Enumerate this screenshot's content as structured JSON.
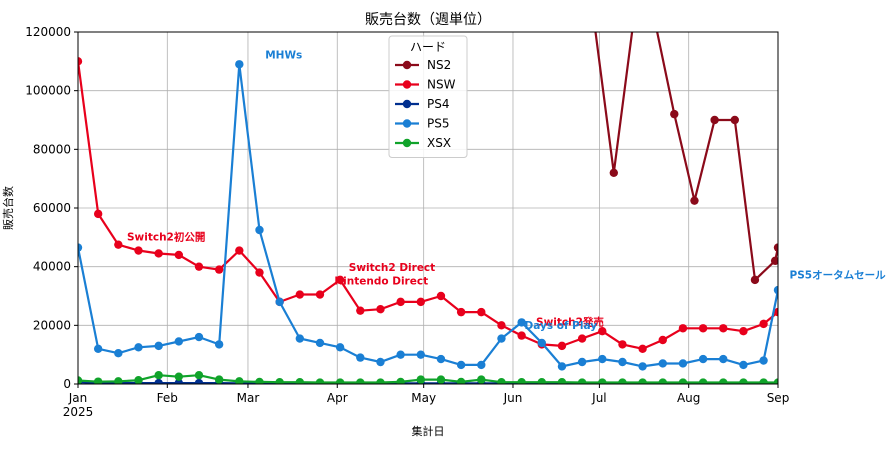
{
  "chart_data": {
    "type": "line",
    "title": "販売台数（週単位）",
    "xlabel": "集計日",
    "ylabel": "販売台数",
    "ylim": [
      0,
      120000
    ],
    "yticks": [
      0,
      20000,
      40000,
      60000,
      80000,
      100000,
      120000
    ],
    "ytick_labels": [
      "0",
      "20000",
      "40000",
      "60000",
      "80000",
      "100000",
      "120000"
    ],
    "xlim": [
      "2025-01-01",
      "2025-09-01"
    ],
    "xticks": [
      {
        "date": "2025-01-01",
        "label": "Jan",
        "sub": "2025"
      },
      {
        "date": "2025-02-01",
        "label": "Feb",
        "sub": ""
      },
      {
        "date": "2025-03-01",
        "label": "Mar",
        "sub": ""
      },
      {
        "date": "2025-04-01",
        "label": "Apr",
        "sub": ""
      },
      {
        "date": "2025-05-01",
        "label": "May",
        "sub": ""
      },
      {
        "date": "2025-06-01",
        "label": "Jun",
        "sub": ""
      },
      {
        "date": "2025-07-01",
        "label": "Jul",
        "sub": ""
      },
      {
        "date": "2025-08-01",
        "label": "Aug",
        "sub": ""
      },
      {
        "date": "2025-09-01",
        "label": "Sep",
        "sub": ""
      }
    ],
    "grid": true,
    "legend": {
      "title": "ハード",
      "placement": "top-center"
    },
    "series": [
      {
        "name": "NS2",
        "color": "#8b0a1a",
        "x": [
          "2025-06-29",
          "2025-07-06",
          "2025-07-13",
          "2025-07-20",
          "2025-07-27",
          "2025-08-03",
          "2025-08-10",
          "2025-08-17",
          "2025-08-24",
          "2025-08-31"
        ],
        "values": [
          125000,
          72000,
          125000,
          125000,
          92000,
          62500,
          90000,
          90000,
          35500,
          42000
        ],
        "last_value": 46500
      },
      {
        "name": "NSW",
        "color": "#e8001c",
        "x": [
          "2025-01-01",
          "2025-01-08",
          "2025-01-15",
          "2025-01-22",
          "2025-01-29",
          "2025-02-05",
          "2025-02-12",
          "2025-02-19",
          "2025-02-26",
          "2025-03-05",
          "2025-03-12",
          "2025-03-19",
          "2025-03-26",
          "2025-04-02",
          "2025-04-09",
          "2025-04-16",
          "2025-04-23",
          "2025-04-30",
          "2025-05-07",
          "2025-05-14",
          "2025-05-21",
          "2025-05-28",
          "2025-06-04",
          "2025-06-11",
          "2025-06-18",
          "2025-06-25",
          "2025-07-02",
          "2025-07-09",
          "2025-07-16",
          "2025-07-23",
          "2025-07-30",
          "2025-08-06",
          "2025-08-13",
          "2025-08-20",
          "2025-08-27",
          "2025-09-01"
        ],
        "values": [
          110000,
          58000,
          47500,
          45500,
          44500,
          44000,
          40000,
          39000,
          45500,
          38000,
          28000,
          30500,
          30500,
          35500,
          25000,
          25500,
          28000,
          28000,
          30000,
          24500,
          24500,
          20000,
          16500,
          13500,
          13000,
          15500,
          18000,
          13500,
          12000,
          15000,
          19000,
          19000,
          19000,
          18000,
          20500,
          24500
        ]
      },
      {
        "name": "PS4",
        "color": "#002f8f",
        "x": [
          "2025-01-01",
          "2025-01-08",
          "2025-01-15",
          "2025-01-22",
          "2025-01-29",
          "2025-02-05",
          "2025-02-12",
          "2025-02-19",
          "2025-02-26",
          "2025-03-05",
          "2025-03-12",
          "2025-03-19",
          "2025-03-26",
          "2025-04-02",
          "2025-04-09",
          "2025-04-16",
          "2025-04-23",
          "2025-04-30",
          "2025-05-07",
          "2025-05-14",
          "2025-05-21",
          "2025-05-28",
          "2025-06-04",
          "2025-06-11",
          "2025-06-18",
          "2025-06-25",
          "2025-07-02",
          "2025-07-09",
          "2025-07-16",
          "2025-07-23",
          "2025-07-30",
          "2025-08-06",
          "2025-08-13",
          "2025-08-20",
          "2025-08-27",
          "2025-09-01"
        ],
        "values": [
          600,
          400,
          400,
          300,
          300,
          300,
          300,
          300,
          200,
          200,
          200,
          200,
          200,
          200,
          200,
          200,
          200,
          200,
          200,
          200,
          200,
          200,
          200,
          200,
          200,
          200,
          200,
          200,
          200,
          200,
          200,
          200,
          200,
          200,
          200,
          200
        ]
      },
      {
        "name": "PS5",
        "color": "#1a7fd4",
        "x": [
          "2025-01-01",
          "2025-01-08",
          "2025-01-15",
          "2025-01-22",
          "2025-01-29",
          "2025-02-05",
          "2025-02-12",
          "2025-02-19",
          "2025-02-26",
          "2025-03-05",
          "2025-03-12",
          "2025-03-19",
          "2025-03-26",
          "2025-04-02",
          "2025-04-09",
          "2025-04-16",
          "2025-04-23",
          "2025-04-30",
          "2025-05-07",
          "2025-05-14",
          "2025-05-21",
          "2025-05-28",
          "2025-06-04",
          "2025-06-11",
          "2025-06-18",
          "2025-06-25",
          "2025-07-02",
          "2025-07-09",
          "2025-07-16",
          "2025-07-23",
          "2025-07-30",
          "2025-08-06",
          "2025-08-13",
          "2025-08-20",
          "2025-08-27",
          "2025-09-01"
        ],
        "values": [
          46500,
          12000,
          10500,
          12500,
          13000,
          14500,
          16000,
          13500,
          109000,
          52500,
          28000,
          15500,
          14000,
          12500,
          9000,
          7500,
          10000,
          10000,
          8500,
          6500,
          6500,
          15500,
          21000,
          14000,
          6000,
          7500,
          8500,
          7500,
          6000,
          7000,
          7000,
          8500,
          8500,
          6500,
          8000,
          32000
        ]
      },
      {
        "name": "XSX",
        "color": "#10a32a",
        "x": [
          "2025-01-01",
          "2025-01-08",
          "2025-01-15",
          "2025-01-22",
          "2025-01-29",
          "2025-02-05",
          "2025-02-12",
          "2025-02-19",
          "2025-02-26",
          "2025-03-05",
          "2025-03-12",
          "2025-03-19",
          "2025-03-26",
          "2025-04-02",
          "2025-04-09",
          "2025-04-16",
          "2025-04-23",
          "2025-04-30",
          "2025-05-07",
          "2025-05-14",
          "2025-05-21",
          "2025-05-28",
          "2025-06-04",
          "2025-06-11",
          "2025-06-18",
          "2025-06-25",
          "2025-07-02",
          "2025-07-09",
          "2025-07-16",
          "2025-07-23",
          "2025-07-30",
          "2025-08-06",
          "2025-08-13",
          "2025-08-20",
          "2025-08-27",
          "2025-09-01"
        ],
        "values": [
          1200,
          800,
          900,
          1300,
          3000,
          2500,
          3000,
          1500,
          900,
          700,
          600,
          600,
          500,
          500,
          500,
          500,
          700,
          1500,
          1500,
          700,
          1500,
          600,
          600,
          600,
          600,
          500,
          500,
          500,
          500,
          500,
          500,
          500,
          500,
          500,
          500,
          500
        ]
      }
    ],
    "annotations": [
      {
        "text": "Switch2初公開",
        "date": "2025-01-18",
        "y": 49000,
        "color": "#e8001c"
      },
      {
        "text": "MHWs",
        "date": "2025-03-07",
        "y": 111000,
        "color": "#1a7fd4"
      },
      {
        "text": "Switch2 Direct",
        "date": "2025-04-05",
        "y": 38500,
        "color": "#e8001c"
      },
      {
        "text": "Nintendo Direct",
        "date": "2025-03-31",
        "y": 34000,
        "color": "#e8001c"
      },
      {
        "text": "Switch2発売",
        "date": "2025-06-09",
        "y": 20000,
        "color": "#e8001c"
      },
      {
        "text": "Days of Play",
        "date": "2025-06-05",
        "y": 18800,
        "color": "#1a7fd4"
      },
      {
        "text": "PS5オータムセール",
        "date": "2025-09-05",
        "y": 36000,
        "color": "#1a7fd4"
      }
    ]
  }
}
